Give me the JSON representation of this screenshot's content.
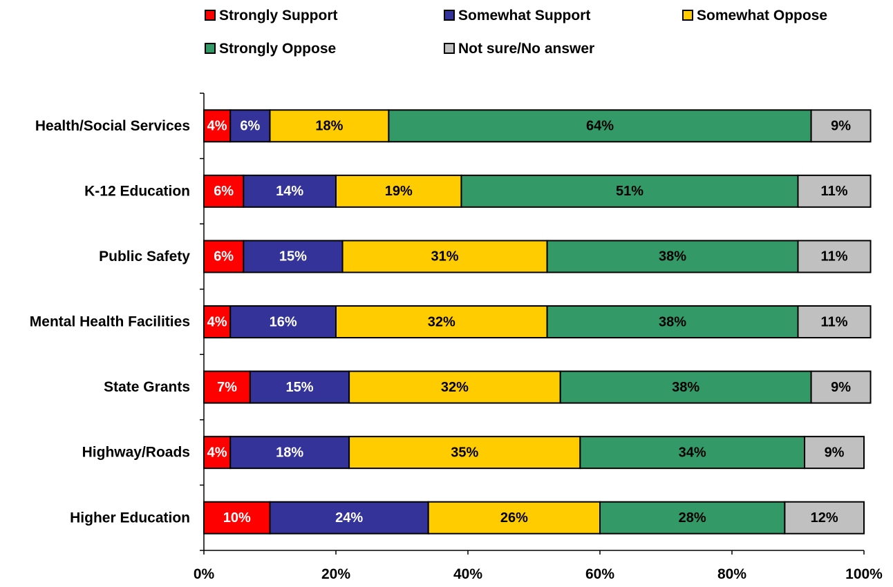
{
  "chart_data": {
    "type": "bar",
    "orientation": "horizontal",
    "stacked": true,
    "categories": [
      "Health/Social Services",
      "K-12 Education",
      "Public Safety",
      "Mental Health Facilities",
      "State Grants",
      "Highway/Roads",
      "Higher Education"
    ],
    "series": [
      {
        "name": "Strongly Support",
        "color": "#ff0000",
        "label_color": "#ffffff",
        "values": [
          4,
          6,
          6,
          4,
          7,
          4,
          10
        ]
      },
      {
        "name": "Somewhat Support",
        "color": "#333399",
        "label_color": "#ffffff",
        "values": [
          6,
          14,
          15,
          16,
          15,
          18,
          24
        ]
      },
      {
        "name": "Somewhat Oppose",
        "color": "#ffcc00",
        "label_color": "#000000",
        "values": [
          18,
          19,
          31,
          32,
          32,
          35,
          26
        ]
      },
      {
        "name": "Strongly Oppose",
        "color": "#339966",
        "label_color": "#000000",
        "values": [
          64,
          51,
          38,
          38,
          38,
          34,
          28
        ]
      },
      {
        "name": "Not sure/No answer",
        "color": "#c0c0c0",
        "label_color": "#000000",
        "values": [
          9,
          11,
          11,
          11,
          9,
          9,
          12
        ]
      }
    ],
    "xlim": [
      0,
      100
    ],
    "x_ticks": [
      "0%",
      "20%",
      "40%",
      "60%",
      "80%",
      "100%"
    ],
    "title": "",
    "xlabel": "",
    "ylabel": "",
    "grid": false,
    "legend_position": "top"
  }
}
